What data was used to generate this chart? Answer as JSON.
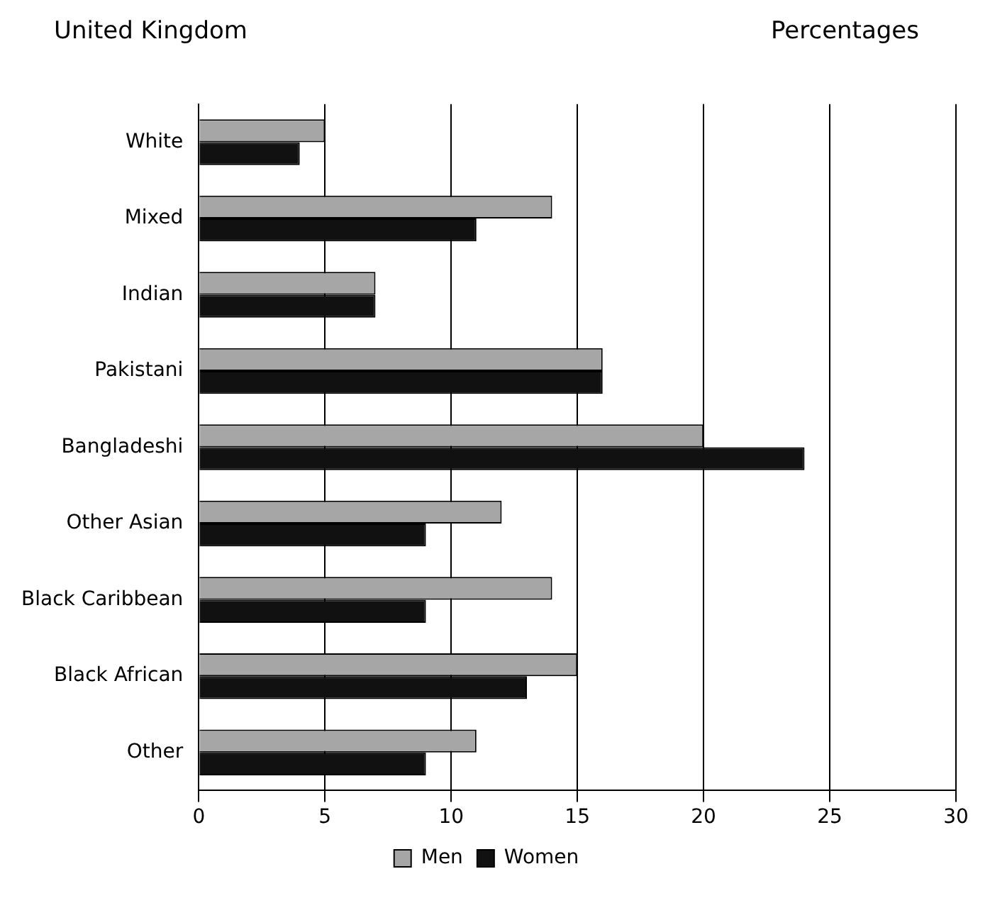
{
  "chart_data": {
    "type": "bar",
    "orientation": "horizontal",
    "title": "United Kingdom",
    "annotations": [
      "Percentages"
    ],
    "categories": [
      "White",
      "Mixed",
      "Indian",
      "Pakistani",
      "Bangladeshi",
      "Other Asian",
      "Black Caribbean",
      "Black African",
      "Other"
    ],
    "series": [
      {
        "name": "Men",
        "color": "#a6a6a6",
        "values": [
          5,
          14,
          7,
          16,
          20,
          12,
          14,
          15,
          11
        ]
      },
      {
        "name": "Women",
        "color": "#111111",
        "values": [
          4,
          11,
          7,
          16,
          24,
          9,
          9,
          13,
          9
        ]
      }
    ],
    "xlim": [
      0,
      30
    ],
    "xticks": [
      0,
      5,
      10,
      15,
      20,
      25,
      30
    ],
    "grid": "x",
    "legend": "bottom"
  }
}
